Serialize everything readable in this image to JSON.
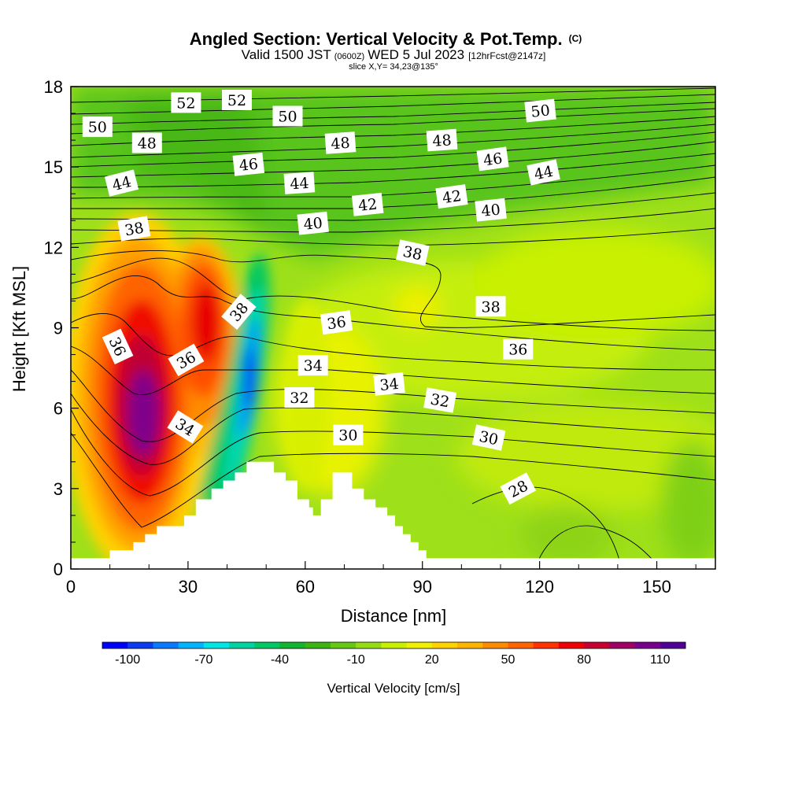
{
  "title": {
    "main": "Angled Section: Vertical Velocity & Pot.Temp.",
    "main_mark": "(C)",
    "sub_valid": "Valid 1500 JST",
    "sub_utc": "(0600Z)",
    "sub_date": "WED 5 Jul 2023",
    "sub_fcst": "[12hrFcst@2147z]",
    "slice": "slice X,Y= 34,23@135°"
  },
  "chart_data": {
    "type": "heatmap",
    "xlabel": "Distance [nm]",
    "ylabel": "Height [Kft MSL]",
    "xlim": [
      0,
      165
    ],
    "ylim": [
      0,
      18
    ],
    "x_ticks": [
      "0",
      "30",
      "60",
      "90",
      "120",
      "150"
    ],
    "y_ticks": [
      "0",
      "3",
      "6",
      "9",
      "12",
      "15",
      "18"
    ],
    "colorbar": {
      "title": "Vertical Velocity [cm/s]",
      "labels": [
        "-100",
        "-70",
        "-40",
        "-10",
        "20",
        "50",
        "80",
        "110"
      ],
      "colors": [
        "#0000ff",
        "#0a3cf0",
        "#0a78ff",
        "#00b4ff",
        "#00e6e6",
        "#00d2a0",
        "#00c864",
        "#14b432",
        "#3cb414",
        "#64c814",
        "#96dc14",
        "#c8f000",
        "#f0f000",
        "#ffd200",
        "#ffb400",
        "#ff8c00",
        "#ff6400",
        "#ff3200",
        "#f00000",
        "#c80032",
        "#a00064",
        "#78008c",
        "#500096"
      ]
    },
    "terrain_kft": [
      [
        0,
        0.4
      ],
      [
        10,
        0.4
      ],
      [
        10,
        0.7
      ],
      [
        16,
        0.7
      ],
      [
        16,
        1.0
      ],
      [
        19,
        1.0
      ],
      [
        19,
        1.3
      ],
      [
        22,
        1.3
      ],
      [
        22,
        1.6
      ],
      [
        29,
        1.6
      ],
      [
        29,
        2.0
      ],
      [
        32,
        2.0
      ],
      [
        32,
        2.6
      ],
      [
        36,
        2.6
      ],
      [
        36,
        3.0
      ],
      [
        39,
        3.0
      ],
      [
        39,
        3.3
      ],
      [
        42,
        3.3
      ],
      [
        42,
        3.6
      ],
      [
        45,
        3.6
      ],
      [
        45,
        4.0
      ],
      [
        52,
        4.0
      ],
      [
        52,
        3.6
      ],
      [
        55,
        3.6
      ],
      [
        55,
        3.3
      ],
      [
        58,
        3.3
      ],
      [
        58,
        2.6
      ],
      [
        61,
        2.6
      ],
      [
        61,
        2.3
      ],
      [
        62,
        2.3
      ],
      [
        62,
        2.0
      ],
      [
        64,
        2.0
      ],
      [
        64,
        2.6
      ],
      [
        67,
        2.6
      ],
      [
        67,
        3.6
      ],
      [
        72,
        3.6
      ],
      [
        72,
        3.0
      ],
      [
        75,
        3.0
      ],
      [
        75,
        2.6
      ],
      [
        78,
        2.6
      ],
      [
        78,
        2.3
      ],
      [
        81,
        2.3
      ],
      [
        81,
        2.0
      ],
      [
        83,
        2.0
      ],
      [
        83,
        1.6
      ],
      [
        85,
        1.6
      ],
      [
        85,
        1.3
      ],
      [
        87,
        1.3
      ],
      [
        87,
        1.0
      ],
      [
        89,
        1.0
      ],
      [
        89,
        0.7
      ],
      [
        91,
        0.7
      ],
      [
        91,
        0.4
      ],
      [
        165,
        0.4
      ]
    ],
    "contour_labels": [
      {
        "text": "52",
        "x": 29.5,
        "y": 17.4,
        "angle": 0
      },
      {
        "text": "52",
        "x": 42.5,
        "y": 17.5,
        "angle": 0
      },
      {
        "text": "50",
        "x": 6.8,
        "y": 16.5,
        "angle": 0
      },
      {
        "text": "50",
        "x": 55.5,
        "y": 16.9,
        "angle": 0
      },
      {
        "text": "50",
        "x": 120.2,
        "y": 17.1,
        "angle": -6
      },
      {
        "text": "48",
        "x": 19.5,
        "y": 15.9,
        "angle": 0
      },
      {
        "text": "48",
        "x": 69,
        "y": 15.9,
        "angle": -4
      },
      {
        "text": "48",
        "x": 95,
        "y": 16.0,
        "angle": -4
      },
      {
        "text": "46",
        "x": 45.5,
        "y": 15.1,
        "angle": -6
      },
      {
        "text": "46",
        "x": 108,
        "y": 15.3,
        "angle": -8
      },
      {
        "text": "44",
        "x": 13,
        "y": 14.4,
        "angle": -14
      },
      {
        "text": "44",
        "x": 58.5,
        "y": 14.4,
        "angle": -4
      },
      {
        "text": "44",
        "x": 121,
        "y": 14.8,
        "angle": -12
      },
      {
        "text": "42",
        "x": 76,
        "y": 13.6,
        "angle": -6
      },
      {
        "text": "42",
        "x": 97.5,
        "y": 13.9,
        "angle": -8
      },
      {
        "text": "40",
        "x": 62,
        "y": 12.9,
        "angle": -6
      },
      {
        "text": "40",
        "x": 107.5,
        "y": 13.4,
        "angle": -6
      },
      {
        "text": "38",
        "x": 16.2,
        "y": 12.7,
        "angle": -10
      },
      {
        "text": "38",
        "x": 87.5,
        "y": 11.8,
        "angle": 12
      },
      {
        "text": "38",
        "x": 107.5,
        "y": 9.8,
        "angle": 0
      },
      {
        "text": "38",
        "x": 43,
        "y": 9.6,
        "angle": -50
      },
      {
        "text": "36",
        "x": 12,
        "y": 8.3,
        "angle": 65
      },
      {
        "text": "36",
        "x": 29.5,
        "y": 7.8,
        "angle": -30
      },
      {
        "text": "36",
        "x": 68,
        "y": 9.2,
        "angle": -8
      },
      {
        "text": "36",
        "x": 114.5,
        "y": 8.2,
        "angle": 0
      },
      {
        "text": "34",
        "x": 62,
        "y": 7.6,
        "angle": 0
      },
      {
        "text": "34",
        "x": 81.5,
        "y": 6.9,
        "angle": -6
      },
      {
        "text": "34",
        "x": 29.3,
        "y": 5.3,
        "angle": 32
      },
      {
        "text": "32",
        "x": 58.5,
        "y": 6.4,
        "angle": 0
      },
      {
        "text": "32",
        "x": 94.5,
        "y": 6.3,
        "angle": 10
      },
      {
        "text": "30",
        "x": 71,
        "y": 5.0,
        "angle": 0
      },
      {
        "text": "30",
        "x": 107,
        "y": 4.9,
        "angle": 12
      },
      {
        "text": "28",
        "x": 114.5,
        "y": 3.0,
        "angle": -28
      }
    ]
  }
}
